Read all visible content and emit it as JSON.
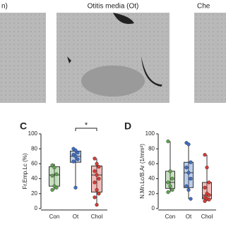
{
  "image_titles": [
    "n)",
    "Otitis media (Ot)",
    "Che"
  ],
  "chart_data": [
    {
      "type": "box",
      "panel": "C",
      "ylabel": "Fr.Emp.Lc (%)",
      "categories": [
        "Con",
        "Ot",
        "Chol"
      ],
      "colors": [
        "#5fa34e",
        "#3f6fc4",
        "#d63b35"
      ],
      "boxes": [
        {
          "min": 25,
          "q1": 30,
          "median": 45,
          "q3": 56,
          "max": 60,
          "points": [
            58,
            55,
            46,
            44,
            30,
            28,
            25
          ]
        },
        {
          "min": 28,
          "q1": 62,
          "median": 70,
          "q3": 77,
          "max": 80,
          "points": [
            80,
            78,
            75,
            72,
            70,
            66,
            63,
            28
          ]
        },
        {
          "min": 5,
          "q1": 22,
          "median": 45,
          "q3": 57,
          "max": 67,
          "points": [
            67,
            60,
            56,
            50,
            45,
            40,
            35,
            25,
            20,
            15,
            5
          ]
        }
      ],
      "annotation": "*",
      "ylim": [
        0,
        100
      ],
      "yticks": [
        0,
        20,
        40,
        60,
        80,
        100
      ]
    },
    {
      "type": "box",
      "panel": "D",
      "ylabel": "N.Mn.Lc/B.Ar (1/mm²)",
      "categories": [
        "Con",
        "Ot",
        "Chol"
      ],
      "colors": [
        "#5fa34e",
        "#3f6fc4",
        "#d63b35"
      ],
      "boxes": [
        {
          "min": 22,
          "q1": 27,
          "median": 35,
          "q3": 50,
          "max": 90,
          "points": [
            90,
            50,
            40,
            35,
            30,
            25,
            22
          ]
        },
        {
          "min": 13,
          "q1": 28,
          "median": 48,
          "q3": 62,
          "max": 88,
          "points": [
            88,
            86,
            62,
            55,
            48,
            40,
            30,
            25,
            13
          ]
        },
        {
          "min": 10,
          "q1": 13,
          "median": 18,
          "q3": 35,
          "max": 72,
          "points": [
            72,
            55,
            35,
            28,
            20,
            18,
            15,
            13,
            12,
            10
          ]
        }
      ],
      "ylim": [
        0,
        100
      ],
      "yticks": [
        0,
        20,
        40,
        60,
        80,
        100
      ]
    }
  ]
}
